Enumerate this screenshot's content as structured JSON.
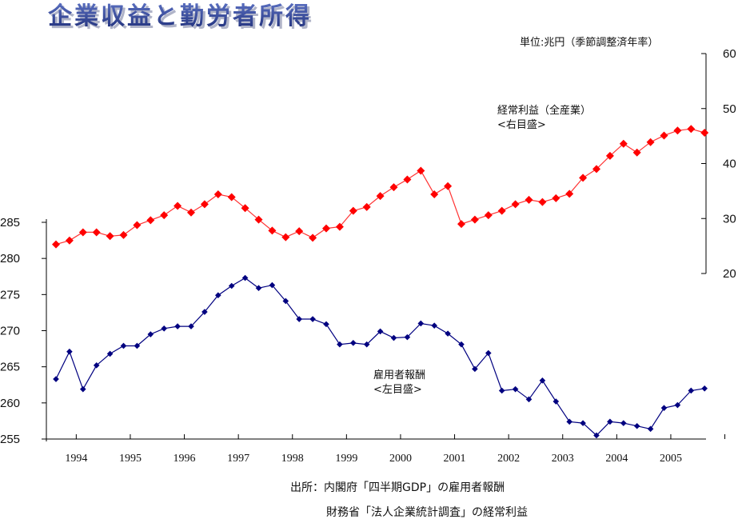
{
  "title": "企業収益と勤労者所得",
  "unit_note": "単位:兆円（季節調整済年率）",
  "chart_data": {
    "type": "line",
    "x": [
      "1994Q1",
      "1994Q2",
      "1994Q3",
      "1994Q4",
      "1995Q1",
      "1995Q2",
      "1995Q3",
      "1995Q4",
      "1996Q1",
      "1996Q2",
      "1996Q3",
      "1996Q4",
      "1997Q1",
      "1997Q2",
      "1997Q3",
      "1997Q4",
      "1998Q1",
      "1998Q2",
      "1998Q3",
      "1998Q4",
      "1999Q1",
      "1999Q2",
      "1999Q3",
      "1999Q4",
      "2000Q1",
      "2000Q2",
      "2000Q3",
      "2000Q4",
      "2001Q1",
      "2001Q2",
      "2001Q3",
      "2001Q4",
      "2002Q1",
      "2002Q2",
      "2002Q3",
      "2002Q4",
      "2003Q1",
      "2003Q2",
      "2003Q3",
      "2003Q4",
      "2004Q1",
      "2004Q2",
      "2004Q3",
      "2004Q4",
      "2005Q1",
      "2005Q2",
      "2005Q3",
      "2005Q4",
      "2006Q1"
    ],
    "year_labels": [
      "1994",
      "1995",
      "1996",
      "1997",
      "1998",
      "1999",
      "2000",
      "2001",
      "2002",
      "2003",
      "2004",
      "2005"
    ],
    "series": [
      {
        "name": "経常利益（全産業）",
        "label_line1": "経常利益（全産業）",
        "label_line2": "<右目盛>",
        "axis": "right",
        "color": "#ff0000",
        "line_color": "#ff3333",
        "marker": "diamond",
        "values": [
          25.3,
          26.0,
          27.5,
          27.5,
          26.8,
          27.0,
          28.8,
          29.7,
          30.6,
          32.3,
          31.1,
          32.6,
          34.4,
          33.9,
          31.9,
          29.8,
          27.8,
          26.6,
          27.7,
          26.5,
          28.2,
          28.5,
          31.4,
          32.1,
          34.1,
          35.7,
          37.1,
          38.7,
          34.4,
          35.9,
          29.0,
          29.8,
          30.6,
          31.4,
          32.6,
          33.4,
          33.0,
          33.7,
          34.5,
          37.4,
          39.0,
          41.4,
          43.6,
          42.0,
          43.9,
          45.1,
          46.0,
          46.3,
          45.6
        ]
      },
      {
        "name": "雇用者報酬",
        "label_line1": "雇用者報酬",
        "label_line2": "<左目盛>",
        "axis": "left",
        "color": "#000080",
        "line_color": "#000080",
        "marker": "diamond",
        "values": [
          263.3,
          267.1,
          261.9,
          265.2,
          266.8,
          267.9,
          267.9,
          269.5,
          270.3,
          270.6,
          270.6,
          272.6,
          274.9,
          276.2,
          277.3,
          275.9,
          276.3,
          274.1,
          271.6,
          271.6,
          270.9,
          268.1,
          268.3,
          268.1,
          269.9,
          269.0,
          269.1,
          271.0,
          270.7,
          269.6,
          268.1,
          264.7,
          266.9,
          261.7,
          261.9,
          260.5,
          263.1,
          260.2,
          257.4,
          257.2,
          255.5,
          257.4,
          257.2,
          256.8,
          256.4,
          259.3,
          259.7,
          261.7,
          262.0
        ]
      }
    ],
    "y_left": {
      "min": 255,
      "max": 285,
      "ticks": [
        "255",
        "260",
        "265",
        "270",
        "275",
        "280",
        "285"
      ]
    },
    "y_right": {
      "min": 20,
      "max": 60,
      "ticks": [
        "20",
        "30",
        "40",
        "50",
        "60"
      ]
    },
    "grid": false,
    "legend": "inline labels"
  },
  "source": {
    "line1": "出所：内閣府「四半期GDP」の雇用者報酬",
    "line2": "財務省「法人企業統計調査」の経常利益"
  }
}
